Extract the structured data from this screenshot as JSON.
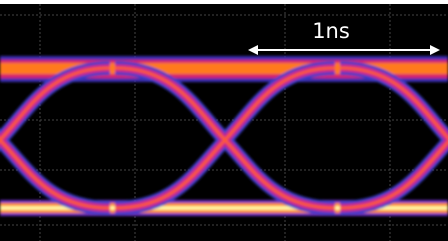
{
  "annotation": {
    "label": "1ns"
  }
}
